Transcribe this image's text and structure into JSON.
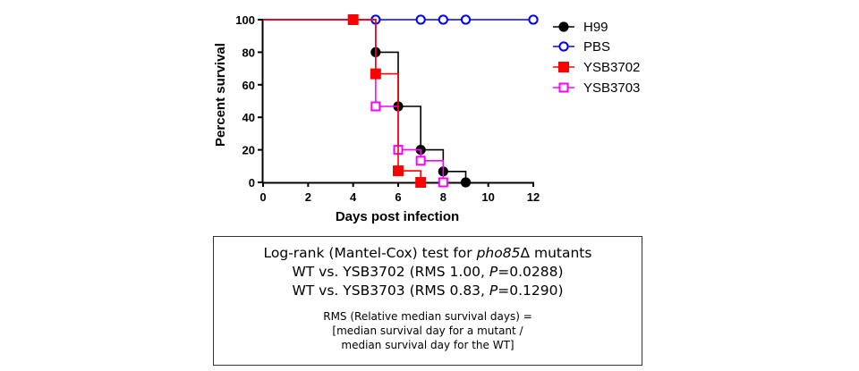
{
  "chart_data": {
    "type": "line",
    "subtype": "kaplan-meier step survival curve",
    "xlabel": "Days post infection",
    "ylabel": "Percent survival",
    "xlim": [
      0,
      12
    ],
    "ylim": [
      0,
      100
    ],
    "xticks": [
      0,
      2,
      4,
      6,
      8,
      10,
      12
    ],
    "yticks": [
      0,
      20,
      40,
      60,
      80,
      100
    ],
    "grid": false,
    "legend_position": "right",
    "series": [
      {
        "name": "H99",
        "color": "#000000",
        "marker": "filled-circle",
        "x": [
          0,
          4,
          5,
          6,
          7,
          8,
          9
        ],
        "y": [
          100,
          100,
          80,
          46.7,
          20,
          6.7,
          0
        ]
      },
      {
        "name": "PBS",
        "color": "#0000ff",
        "marker": "open-circle",
        "x": [
          0,
          4,
          5,
          7,
          8,
          9,
          12
        ],
        "y": [
          100,
          100,
          100,
          100,
          100,
          100,
          100
        ]
      },
      {
        "name": "YSB3702",
        "color": "#ff0000",
        "marker": "filled-square",
        "x": [
          0,
          4,
          5,
          6,
          7
        ],
        "y": [
          100,
          100,
          66.7,
          7.1,
          0
        ]
      },
      {
        "name": "YSB3703",
        "color": "#ff00ff",
        "marker": "open-square",
        "x": [
          0,
          4,
          5,
          6,
          7,
          8
        ],
        "y": [
          100,
          100,
          46.7,
          20,
          13.3,
          0
        ]
      }
    ]
  },
  "stats": {
    "heading_prefix": "Log-rank (Mantel-Cox) test for ",
    "heading_gene": "pho85",
    "heading_suffix": "Δ mutants",
    "comparisons": [
      {
        "prefix": "WT vs. YSB3702 (RMS 1.00, ",
        "p_symbol": "P",
        "p_value": "=0.0288)"
      },
      {
        "prefix": "WT vs. YSB3703 (RMS 0.83, ",
        "p_symbol": "P",
        "p_value": "=0.1290)"
      }
    ],
    "note_line1": "RMS (Relative median survival days) =",
    "note_line2": "[median survival day for a mutant  /",
    "note_line3": "median survival day for the WT]"
  }
}
